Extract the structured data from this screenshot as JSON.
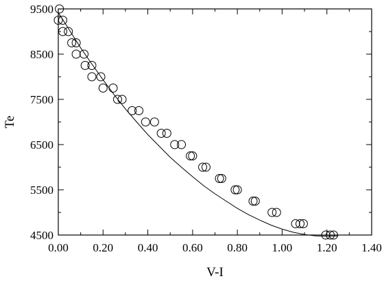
{
  "chart_data": {
    "type": "scatter",
    "xlabel": "V-I",
    "ylabel": "Te",
    "xlim": [
      0.0,
      1.4
    ],
    "ylim": [
      4500,
      9500
    ],
    "xticks": [
      0.0,
      0.2,
      0.4,
      0.6,
      0.8,
      1.0,
      1.2,
      1.4
    ],
    "xtick_labels": [
      "0.00",
      "0.20",
      "0.40",
      "0.60",
      "0.80",
      "1.00",
      "1.20",
      "1.40"
    ],
    "yticks": [
      4500,
      5500,
      6500,
      7500,
      8500,
      9500
    ],
    "ytick_labels": [
      "4500",
      "5500",
      "6500",
      "7500",
      "8500",
      "9500"
    ],
    "grid": false,
    "marker": "open-circle",
    "series": [
      {
        "points": [
          [
            0.005,
            9500
          ],
          [
            0.0,
            9250
          ],
          [
            0.02,
            9250
          ],
          [
            0.02,
            9000
          ],
          [
            0.045,
            9000
          ],
          [
            0.06,
            8750
          ],
          [
            0.08,
            8750
          ],
          [
            0.08,
            8500
          ],
          [
            0.115,
            8500
          ],
          [
            0.12,
            8250
          ],
          [
            0.15,
            8250
          ],
          [
            0.15,
            8000
          ],
          [
            0.19,
            8000
          ],
          [
            0.2,
            7750
          ],
          [
            0.245,
            7750
          ],
          [
            0.265,
            7500
          ],
          [
            0.285,
            7500
          ],
          [
            0.33,
            7250
          ],
          [
            0.36,
            7250
          ],
          [
            0.39,
            7000
          ],
          [
            0.43,
            7000
          ],
          [
            0.46,
            6750
          ],
          [
            0.485,
            6750
          ],
          [
            0.52,
            6500
          ],
          [
            0.55,
            6500
          ],
          [
            0.59,
            6250
          ],
          [
            0.6,
            6250
          ],
          [
            0.645,
            6000
          ],
          [
            0.66,
            6000
          ],
          [
            0.72,
            5750
          ],
          [
            0.73,
            5750
          ],
          [
            0.79,
            5500
          ],
          [
            0.8,
            5500
          ],
          [
            0.87,
            5250
          ],
          [
            0.88,
            5250
          ],
          [
            0.955,
            5000
          ],
          [
            0.975,
            5000
          ],
          [
            1.06,
            4750
          ],
          [
            1.08,
            4750
          ],
          [
            1.095,
            4750
          ],
          [
            1.195,
            4500
          ],
          [
            1.215,
            4500
          ],
          [
            1.23,
            4500
          ]
        ]
      }
    ],
    "fit_curve": {
      "x": [
        0.0,
        0.05,
        0.1,
        0.15,
        0.2,
        0.25,
        0.3,
        0.35,
        0.4,
        0.45,
        0.5,
        0.55,
        0.6,
        0.65,
        0.7,
        0.75,
        0.8,
        0.85,
        0.9,
        0.95,
        1.0,
        1.05,
        1.1,
        1.15,
        1.2,
        1.25
      ],
      "y": [
        9420,
        9030,
        8640,
        8280,
        7930,
        7600,
        7290,
        7000,
        6720,
        6470,
        6220,
        6000,
        5790,
        5590,
        5410,
        5250,
        5090,
        4950,
        4830,
        4720,
        4630,
        4560,
        4510,
        4480,
        4475,
        4480
      ]
    }
  }
}
